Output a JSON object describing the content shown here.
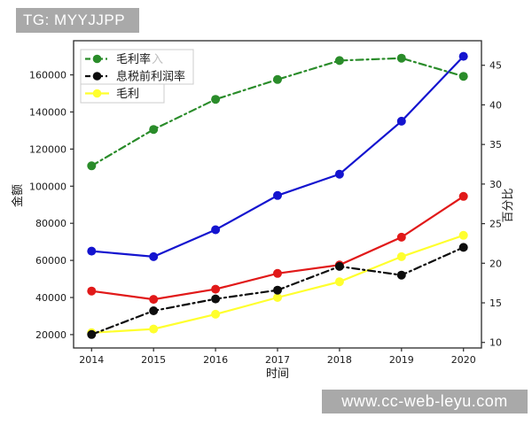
{
  "watermarks": {
    "top_left": "TG: MYYJJPP",
    "bottom_right": "www.cc-web-leyu.com",
    "background": "#a9a9a9",
    "text_color": "#ffffff"
  },
  "chart_data": {
    "type": "line",
    "title": "",
    "x": [
      2014,
      2015,
      2016,
      2017,
      2018,
      2019,
      2020
    ],
    "x_axis": {
      "label": "时间",
      "ticks": [
        2014,
        2015,
        2016,
        2017,
        2018,
        2019,
        2020
      ],
      "range": [
        2013.71,
        2020.29
      ]
    },
    "left_axis": {
      "label": "金额",
      "ticks": [
        20000,
        40000,
        60000,
        80000,
        100000,
        120000,
        140000,
        160000
      ],
      "range": [
        12800,
        178400
      ]
    },
    "right_axis": {
      "label": "百分比",
      "ticks": [
        10,
        15,
        20,
        25,
        30,
        35,
        40,
        45
      ],
      "range": [
        9.3,
        48.1
      ]
    },
    "grid": false,
    "legend_position": "upper-left",
    "series": [
      {
        "id": "blue-line",
        "label": "",
        "legend": false,
        "axis": "left",
        "color": "#1414cf",
        "style": "solid",
        "marker": "circle",
        "values": [
          65000,
          62000,
          76500,
          95000,
          106500,
          135000,
          170000
        ]
      },
      {
        "id": "red-line",
        "label": "",
        "legend": false,
        "axis": "left",
        "color": "#e11919",
        "style": "solid",
        "marker": "circle",
        "values": [
          43500,
          39000,
          44500,
          53000,
          57500,
          72500,
          94500
        ]
      },
      {
        "id": "gross-profit",
        "label": "毛利",
        "legend": true,
        "axis": "left",
        "color": "#ffff2e",
        "style": "solid",
        "marker": "circle",
        "values": [
          21000,
          23000,
          31000,
          40000,
          48500,
          62000,
          73500
        ]
      },
      {
        "id": "gross-margin-rate",
        "label": "毛利率",
        "ghost_text": "入",
        "legend": true,
        "axis": "right",
        "color": "#2a8c2a",
        "style": "dashdot",
        "marker": "circle",
        "values": [
          32.3,
          36.9,
          40.7,
          43.2,
          45.6,
          45.9,
          43.6
        ]
      },
      {
        "id": "ebit-margin-rate",
        "label": "息税前利润率",
        "legend": true,
        "axis": "right",
        "color": "#0d0d0d",
        "style": "dashdot",
        "marker": "circle",
        "values": [
          11.0,
          14.0,
          15.5,
          16.6,
          19.6,
          18.5,
          22.0
        ]
      }
    ],
    "legend": {
      "groups": [
        {
          "series": [
            "gross-margin-rate",
            "ebit-margin-rate"
          ]
        },
        {
          "series": [
            "gross-profit"
          ]
        }
      ]
    }
  }
}
